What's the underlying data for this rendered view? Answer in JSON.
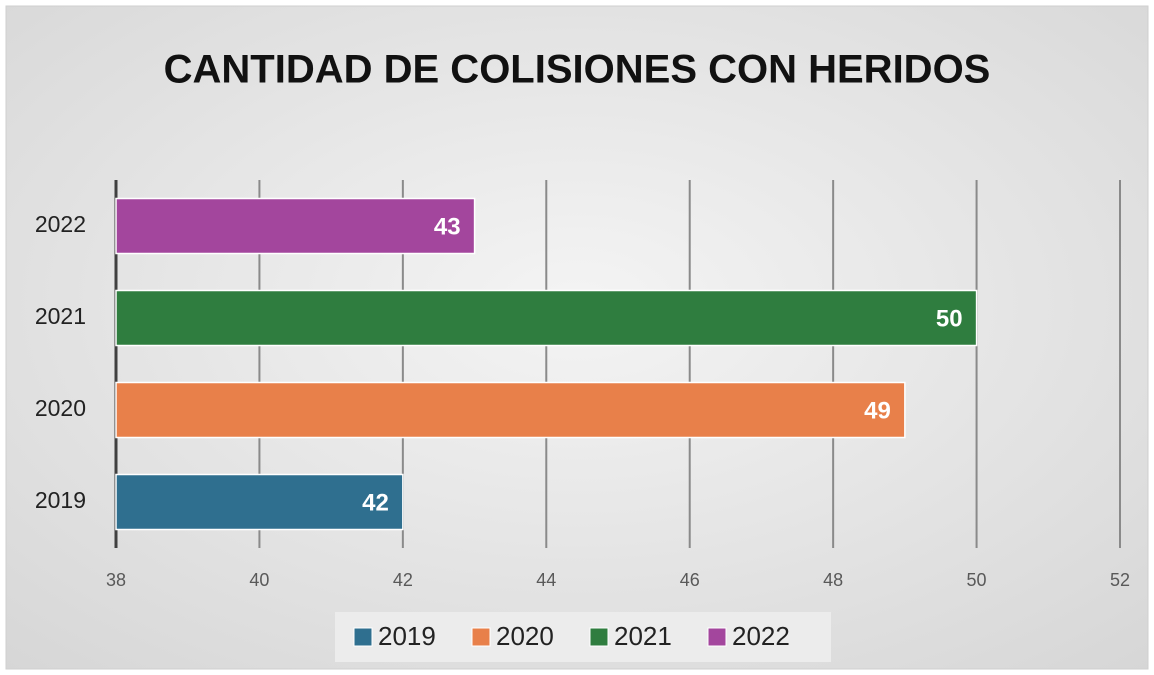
{
  "chart_data": {
    "type": "barh",
    "title": "CANTIDAD DE COLISIONES CON HERIDOS",
    "categories": [
      "2019",
      "2020",
      "2021",
      "2022"
    ],
    "values": [
      42,
      49,
      50,
      43
    ],
    "colors": [
      "#2f6f8f",
      "#e8804a",
      "#2f7d3f",
      "#a3469d"
    ],
    "xlim": [
      38,
      52
    ],
    "xticks": [
      38,
      40,
      42,
      44,
      46,
      48,
      50,
      52
    ],
    "grid": true,
    "legend": "bottom"
  }
}
